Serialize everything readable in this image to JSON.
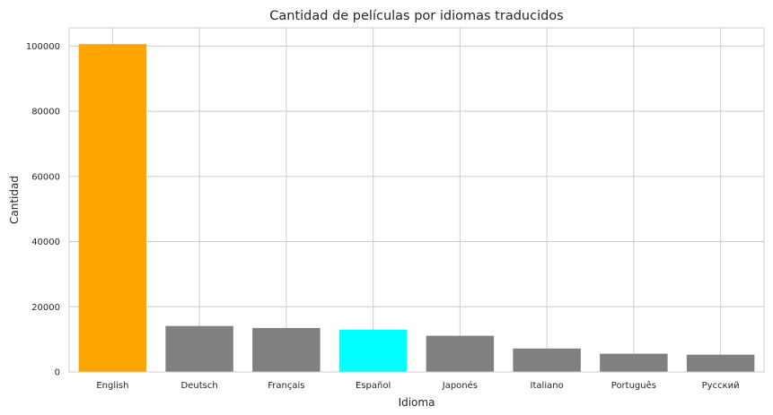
{
  "chart_data": {
    "type": "bar",
    "title": "Cantidad de películas por idiomas traducidos",
    "xlabel": "Idioma",
    "ylabel": "Cantidad",
    "categories": [
      "English",
      "Deutsch",
      "Français",
      "Español",
      "Japonés",
      "Italiano",
      "Português",
      "Pусский"
    ],
    "values": [
      100600,
      14100,
      13500,
      13000,
      11100,
      7200,
      5600,
      5300
    ],
    "bar_colors": [
      "#FFA500",
      "#808080",
      "#808080",
      "#00FFFF",
      "#808080",
      "#808080",
      "#808080",
      "#808080"
    ],
    "ylim": [
      0,
      105600
    ],
    "yticks": [
      0,
      20000,
      40000,
      60000,
      80000,
      100000
    ],
    "grid": true,
    "legend": false
  }
}
